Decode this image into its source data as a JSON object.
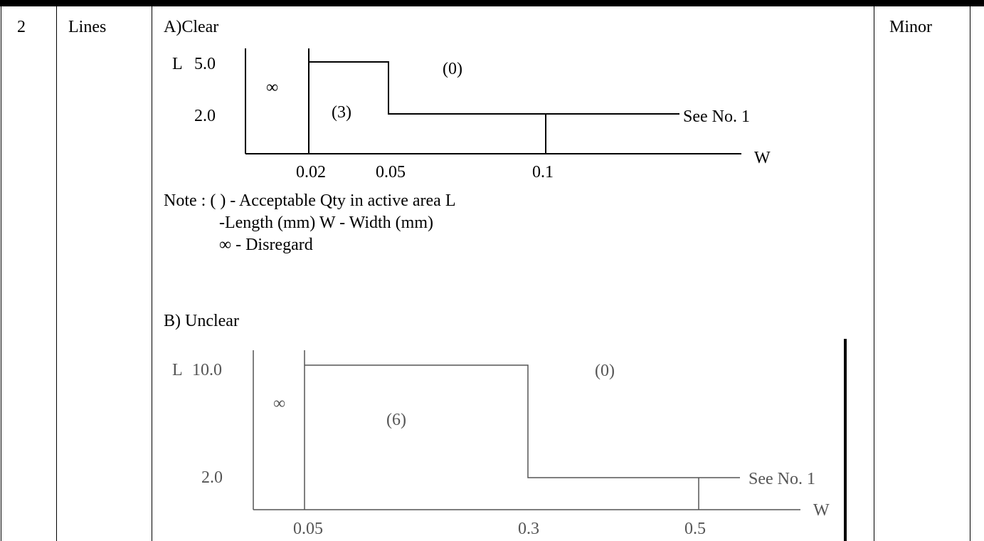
{
  "row": {
    "number": "2",
    "item": "Lines",
    "severity": "Minor"
  },
  "section_a": {
    "heading": "A)Clear",
    "diagram": {
      "l_axis_label": "L",
      "l_ticks": [
        "5.0",
        "2.0"
      ],
      "w_axis_label": "W",
      "w_ticks": [
        "0.02",
        "0.05",
        "0.1"
      ],
      "region_disregard": "∞",
      "region_upper": "(0)",
      "region_mid": "(3)",
      "reference": "See No. 1"
    },
    "note_lines": [
      "Note : ( ) - Acceptable Qty in active area L",
      "-Length (mm) W - Width (mm)",
      "∞ - Disregard"
    ]
  },
  "section_b": {
    "heading": "B) Unclear",
    "diagram": {
      "l_axis_label": "L",
      "l_ticks": [
        "10.0",
        "2.0"
      ],
      "w_axis_label": "W",
      "w_ticks": [
        "0.05",
        "0.3",
        "0.5"
      ],
      "region_disregard": "∞",
      "region_upper": "(0)",
      "region_mid": "(6)",
      "reference": "See No. 1"
    }
  }
}
